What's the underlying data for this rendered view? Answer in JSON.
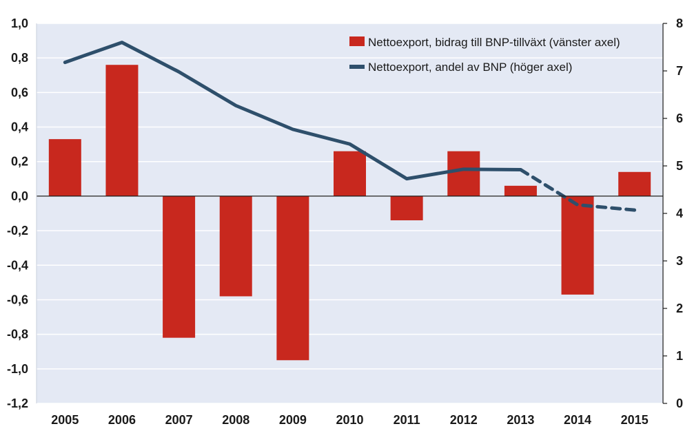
{
  "chart_data": {
    "type": "bar",
    "categories": [
      "2005",
      "2006",
      "2007",
      "2008",
      "2009",
      "2010",
      "2011",
      "2012",
      "2013",
      "2014",
      "2015"
    ],
    "left_axis": {
      "ylim": [
        -1.2,
        1.0
      ],
      "ticks": [
        1.0,
        0.8,
        0.6,
        0.4,
        0.2,
        0.0,
        -0.2,
        -0.4,
        -0.6,
        -0.8,
        -1.0,
        -1.2
      ],
      "tick_labels": [
        "1,0",
        "0,8",
        "0,6",
        "0,4",
        "0,2",
        "0,0",
        "-0,2",
        "-0,4",
        "-0,6",
        "-0,8",
        "-1,0",
        "-1,2"
      ]
    },
    "right_axis": {
      "ylim": [
        0,
        8
      ],
      "ticks": [
        8,
        7,
        6,
        5,
        4,
        3,
        2,
        1,
        0
      ],
      "tick_labels": [
        "8",
        "7",
        "6",
        "5",
        "4",
        "3",
        "2",
        "1",
        "0"
      ]
    },
    "series": [
      {
        "name": "Nettoexport, bidrag till BNP-tillväxt (vänster axel)",
        "type": "bar",
        "axis": "left",
        "color": "#c8281e",
        "values": [
          0.33,
          0.76,
          -0.82,
          -0.58,
          -0.95,
          0.26,
          -0.14,
          0.26,
          0.06,
          -0.57,
          0.14
        ]
      },
      {
        "name": "Nettoexport, andel av BNP (höger axel)",
        "type": "line",
        "axis": "right",
        "color": "#2e4f6b",
        "values": [
          7.18,
          7.6,
          6.98,
          6.27,
          5.77,
          5.46,
          4.73,
          4.93,
          4.92,
          4.18,
          4.07
        ],
        "dashed_from_index": 8
      }
    ],
    "grid": true,
    "legend_position": "top-right",
    "plot_background": "#e4e9f4",
    "grid_color": "#ffffff",
    "axis_color": "#1a1a1a"
  }
}
